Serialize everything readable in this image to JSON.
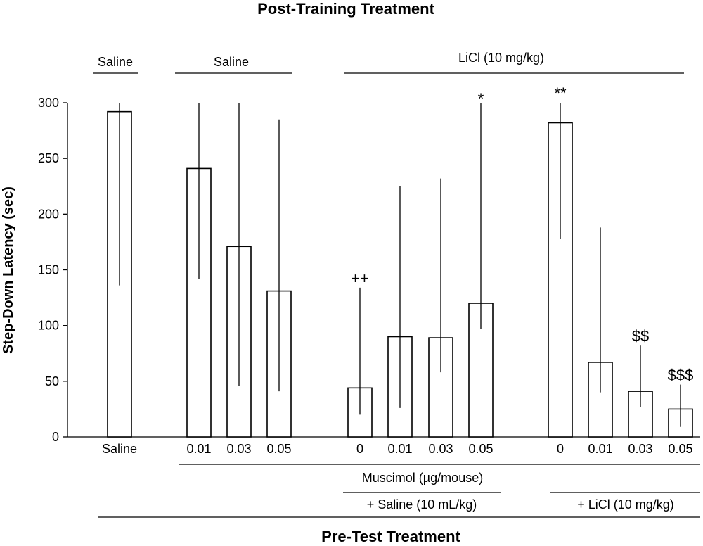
{
  "chart_data": {
    "type": "bar",
    "title": "Post-Training Treatment",
    "bottom_title": "Pre-Test Treatment",
    "ylabel": "Step-Down Latency (sec)",
    "ylim": [
      0,
      300
    ],
    "yticks": [
      "0",
      "50",
      "100",
      "150",
      "200",
      "250",
      "300"
    ],
    "top_groups": [
      {
        "label": "Saline"
      },
      {
        "label": "Saline"
      },
      {
        "label": "LiCl (10 mg/kg)"
      }
    ],
    "bottom_groups": {
      "muscimol": "Muscimol (µg/mouse)",
      "saline": "+ Saline (10 mL/kg)",
      "licl": "+ LiCl (10 mg/kg)"
    },
    "bars": [
      {
        "category": "Saline",
        "value": 292,
        "err_high": 300,
        "err_low": 136,
        "annotation": ""
      },
      {
        "category": "0.01",
        "value": 241,
        "err_high": 300,
        "err_low": 142,
        "annotation": ""
      },
      {
        "category": "0.03",
        "value": 171,
        "err_high": 300,
        "err_low": 46,
        "annotation": ""
      },
      {
        "category": "0.05",
        "value": 131,
        "err_high": 285,
        "err_low": 41,
        "annotation": ""
      },
      {
        "category": "0",
        "value": 44,
        "err_high": 134,
        "err_low": 20,
        "annotation": "++"
      },
      {
        "category": "0.01",
        "value": 90,
        "err_high": 225,
        "err_low": 26,
        "annotation": ""
      },
      {
        "category": "0.03",
        "value": 89,
        "err_high": 232,
        "err_low": 58,
        "annotation": ""
      },
      {
        "category": "0.05",
        "value": 120,
        "err_high": 300,
        "err_low": 97,
        "annotation": "*"
      },
      {
        "category": "0",
        "value": 282,
        "err_high": 300,
        "err_low": 178,
        "annotation": "**"
      },
      {
        "category": "0.01",
        "value": 67,
        "err_high": 188,
        "err_low": 40,
        "annotation": ""
      },
      {
        "category": "0.03",
        "value": 41,
        "err_high": 82,
        "err_low": 27,
        "annotation": "$$"
      },
      {
        "category": "0.05",
        "value": 25,
        "err_high": 47,
        "err_low": 9,
        "annotation": "$$$"
      }
    ]
  }
}
